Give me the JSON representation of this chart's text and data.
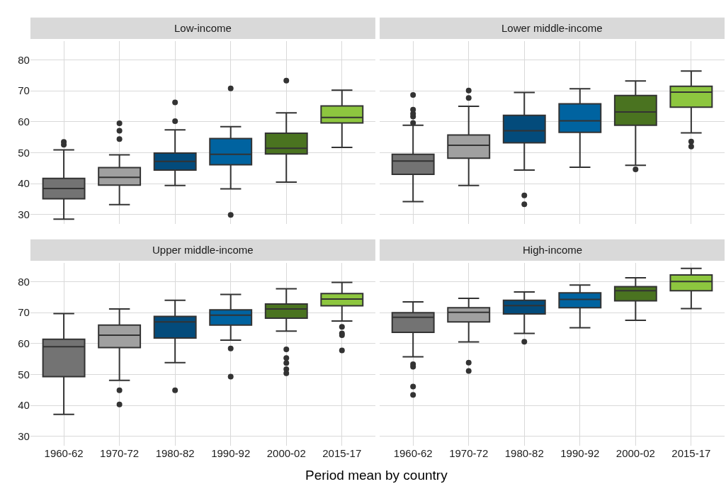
{
  "chart_data": [
    {
      "type": "box",
      "title": "Low-income",
      "categories": [
        "1960-62",
        "1970-72",
        "1980-82",
        "1990-92",
        "2000-02",
        "2015-17"
      ],
      "colors": [
        "#737373",
        "#a0a0a0",
        "#034b7b",
        "#0063a0",
        "#4a7320",
        "#8dc63f"
      ],
      "ylim": [
        26.9,
        86
      ],
      "yticks": [
        30,
        40,
        50,
        60,
        70,
        80
      ],
      "grid": true,
      "tick_labels": "y",
      "boxes": [
        {
          "low": 28.5,
          "q1": 35.1,
          "median": 38.4,
          "q3": 41.7,
          "high": 50.9,
          "outliers": [
            53.5,
            52.6
          ]
        },
        {
          "low": 33.2,
          "q1": 39.5,
          "median": 42.0,
          "q3": 45.2,
          "high": 49.3,
          "outliers": [
            59.5,
            57.1,
            54.4
          ]
        },
        {
          "low": 39.4,
          "q1": 44.4,
          "median": 47.2,
          "q3": 49.9,
          "high": 57.4,
          "outliers": [
            66.3,
            60.2
          ]
        },
        {
          "low": 38.3,
          "q1": 46.1,
          "median": 49.5,
          "q3": 54.6,
          "high": 58.4,
          "outliers": [
            70.8,
            29.9
          ]
        },
        {
          "low": 40.5,
          "q1": 49.6,
          "median": 51.4,
          "q3": 56.3,
          "high": 62.9,
          "outliers": [
            73.3
          ]
        },
        {
          "low": 51.7,
          "q1": 59.6,
          "median": 61.4,
          "q3": 65.1,
          "high": 70.2
        }
      ]
    },
    {
      "type": "box",
      "title": "Lower middle-income",
      "categories": [
        "1960-62",
        "1970-72",
        "1980-82",
        "1990-92",
        "2000-02",
        "2015-17"
      ],
      "colors": [
        "#737373",
        "#a0a0a0",
        "#034b7b",
        "#0063a0",
        "#4a7320",
        "#8dc63f"
      ],
      "ylim": [
        26.9,
        86
      ],
      "yticks": [
        30,
        40,
        50,
        60,
        70,
        80
      ],
      "grid": true,
      "tick_labels": false,
      "boxes": [
        {
          "low": 34.2,
          "q1": 43.0,
          "median": 47.3,
          "q3": 49.5,
          "high": 58.9,
          "outliers": [
            59.6,
            61.7,
            62.6,
            63.9,
            68.7
          ]
        },
        {
          "low": 39.4,
          "q1": 48.2,
          "median": 52.4,
          "q3": 55.7,
          "high": 65.0,
          "outliers": [
            70.1,
            67.7
          ]
        },
        {
          "low": 44.4,
          "q1": 53.2,
          "median": 57.1,
          "q3": 62.1,
          "high": 69.5,
          "outliers": [
            36.2,
            33.3
          ]
        },
        {
          "low": 45.3,
          "q1": 56.6,
          "median": 60.3,
          "q3": 65.8,
          "high": 70.7
        },
        {
          "low": 45.9,
          "q1": 58.9,
          "median": 63.2,
          "q3": 68.5,
          "high": 73.2,
          "outliers": [
            44.6
          ]
        },
        {
          "low": 56.4,
          "q1": 64.7,
          "median": 69.6,
          "q3": 71.5,
          "high": 76.4,
          "outliers": [
            53.6,
            52.0
          ]
        }
      ]
    },
    {
      "type": "box",
      "title": "Upper middle-income",
      "categories": [
        "1960-62",
        "1970-72",
        "1980-82",
        "1990-92",
        "2000-02",
        "2015-17"
      ],
      "colors": [
        "#737373",
        "#a0a0a0",
        "#034b7b",
        "#0063a0",
        "#4a7320",
        "#8dc63f"
      ],
      "ylim": [
        26.9,
        86
      ],
      "yticks": [
        30,
        40,
        50,
        60,
        70,
        80
      ],
      "grid": true,
      "boxes": [
        {
          "low": 37.1,
          "q1": 49.3,
          "median": 59.0,
          "q3": 61.4,
          "high": 69.7
        },
        {
          "low": 48.1,
          "q1": 58.7,
          "median": 62.7,
          "q3": 66.0,
          "high": 71.2,
          "outliers": [
            44.9,
            40.3
          ]
        },
        {
          "low": 53.8,
          "q1": 61.8,
          "median": 67.0,
          "q3": 68.8,
          "high": 74.0,
          "outliers": [
            44.9
          ]
        },
        {
          "low": 61.1,
          "q1": 66.0,
          "median": 69.2,
          "q3": 70.9,
          "high": 75.9,
          "outliers": [
            58.4,
            49.3
          ]
        },
        {
          "low": 64.0,
          "q1": 68.2,
          "median": 71.2,
          "q3": 72.8,
          "high": 77.7,
          "outliers": [
            58.1,
            55.3,
            53.7,
            51.7,
            50.4
          ]
        },
        {
          "low": 67.3,
          "q1": 72.2,
          "median": 74.4,
          "q3": 76.2,
          "high": 79.8,
          "outliers": [
            65.4,
            63.3,
            62.7,
            57.8
          ]
        }
      ]
    },
    {
      "type": "box",
      "title": "High-income",
      "xlabel": "Period mean by country",
      "categories": [
        "1960-62",
        "1970-72",
        "1980-82",
        "1990-92",
        "2000-02",
        "2015-17"
      ],
      "colors": [
        "#737373",
        "#a0a0a0",
        "#034b7b",
        "#0063a0",
        "#4a7320",
        "#8dc63f"
      ],
      "ylim": [
        26.9,
        86
      ],
      "yticks": [
        30,
        40,
        50,
        60,
        70,
        80
      ],
      "grid": true,
      "tick_labels": "x",
      "boxes": [
        {
          "low": 55.7,
          "q1": 63.6,
          "median": 68.5,
          "q3": 70.0,
          "high": 73.5,
          "outliers": [
            53.3,
            52.5,
            46.1,
            43.4
          ]
        },
        {
          "low": 60.5,
          "q1": 67.0,
          "median": 70.1,
          "q3": 71.6,
          "high": 74.6,
          "outliers": [
            53.8,
            51.1
          ]
        },
        {
          "low": 63.3,
          "q1": 69.6,
          "median": 72.3,
          "q3": 74.0,
          "high": 76.7,
          "outliers": [
            60.6
          ]
        },
        {
          "low": 65.1,
          "q1": 71.6,
          "median": 74.3,
          "q3": 76.4,
          "high": 78.9
        },
        {
          "low": 67.5,
          "q1": 73.8,
          "median": 77.1,
          "q3": 78.4,
          "high": 81.3
        },
        {
          "low": 71.3,
          "q1": 77.1,
          "median": 80.1,
          "q3": 82.2,
          "high": 84.3
        }
      ]
    }
  ]
}
